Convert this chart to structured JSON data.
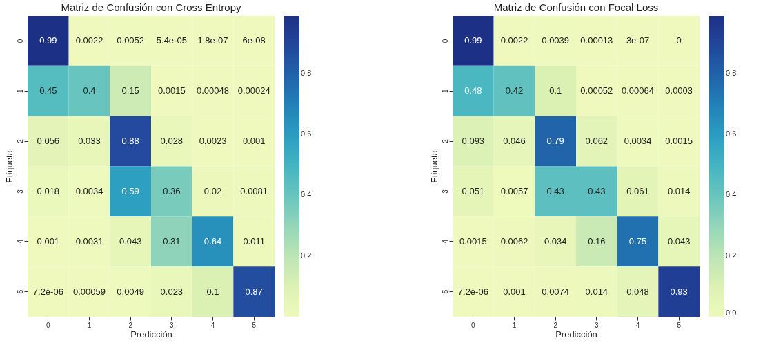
{
  "chart_data": [
    {
      "type": "heatmap",
      "title": "Matriz de Confusión con Cross Entropy",
      "xlabel": "Predicción",
      "ylabel": "Etiqueta",
      "categories": [
        "0",
        "1",
        "2",
        "3",
        "4",
        "5"
      ],
      "y_categories": [
        "0",
        "1",
        "2",
        "3",
        "4",
        "5"
      ],
      "cells": [
        [
          0.99,
          0.0022,
          0.0052,
          5.4e-05,
          1.8e-07,
          6e-08
        ],
        [
          0.45,
          0.4,
          0.15,
          0.0015,
          0.00048,
          0.00024
        ],
        [
          0.056,
          0.033,
          0.88,
          0.028,
          0.0023,
          0.001
        ],
        [
          0.018,
          0.0034,
          0.59,
          0.36,
          0.02,
          0.0081
        ],
        [
          0.001,
          0.0031,
          0.043,
          0.31,
          0.64,
          0.011
        ],
        [
          7.2e-06,
          0.00059,
          0.0049,
          0.023,
          0.1,
          0.87
        ]
      ],
      "cell_labels": [
        [
          "0.99",
          "0.0022",
          "0.0052",
          "5.4e-05",
          "1.8e-07",
          "6e-08"
        ],
        [
          "0.45",
          "0.4",
          "0.15",
          "0.0015",
          "0.00048",
          "0.00024"
        ],
        [
          "0.056",
          "0.033",
          "0.88",
          "0.028",
          "0.0023",
          "0.001"
        ],
        [
          "0.018",
          "0.0034",
          "0.59",
          "0.36",
          "0.02",
          "0.0081"
        ],
        [
          "0.001",
          "0.0031",
          "0.043",
          "0.31",
          "0.64",
          "0.011"
        ],
        [
          "7.2e-06",
          "0.00059",
          "0.0049",
          "0.023",
          "0.1",
          "0.87"
        ]
      ],
      "clim": [
        6e-08,
        0.99
      ],
      "cticks": [
        0.2,
        0.4,
        0.6,
        0.8
      ]
    },
    {
      "type": "heatmap",
      "title": "Matriz de Confusión con Focal Loss",
      "xlabel": "Predicción",
      "ylabel": "Etiqueta",
      "categories": [
        "0",
        "1",
        "2",
        "3",
        "4",
        "5"
      ],
      "y_categories": [
        "0",
        "1",
        "2",
        "3",
        "4",
        "5"
      ],
      "cells": [
        [
          0.99,
          0.0022,
          0.0039,
          0.00013,
          3e-07,
          0
        ],
        [
          0.48,
          0.42,
          0.1,
          0.00052,
          0.00064,
          0.0003
        ],
        [
          0.093,
          0.046,
          0.79,
          0.062,
          0.0034,
          0.0015
        ],
        [
          0.051,
          0.0057,
          0.43,
          0.43,
          0.061,
          0.014
        ],
        [
          0.0015,
          0.0062,
          0.034,
          0.16,
          0.75,
          0.043
        ],
        [
          7.2e-06,
          0.001,
          0.0074,
          0.014,
          0.048,
          0.93
        ]
      ],
      "cell_labels": [
        [
          "0.99",
          "0.0022",
          "0.0039",
          "0.00013",
          "3e-07",
          "0"
        ],
        [
          "0.48",
          "0.42",
          "0.1",
          "0.00052",
          "0.00064",
          "0.0003"
        ],
        [
          "0.093",
          "0.046",
          "0.79",
          "0.062",
          "0.0034",
          "0.0015"
        ],
        [
          "0.051",
          "0.0057",
          "0.43",
          "0.43",
          "0.061",
          "0.014"
        ],
        [
          "0.0015",
          "0.0062",
          "0.034",
          "0.16",
          "0.75",
          "0.043"
        ],
        [
          "7.2e-06",
          "0.001",
          "0.0074",
          "0.014",
          "0.048",
          "0.93"
        ]
      ],
      "clim": [
        0,
        0.99
      ],
      "cticks": [
        {
          "value": 0,
          "label": "0.0"
        },
        0.2,
        0.4,
        0.6,
        0.8
      ]
    }
  ]
}
